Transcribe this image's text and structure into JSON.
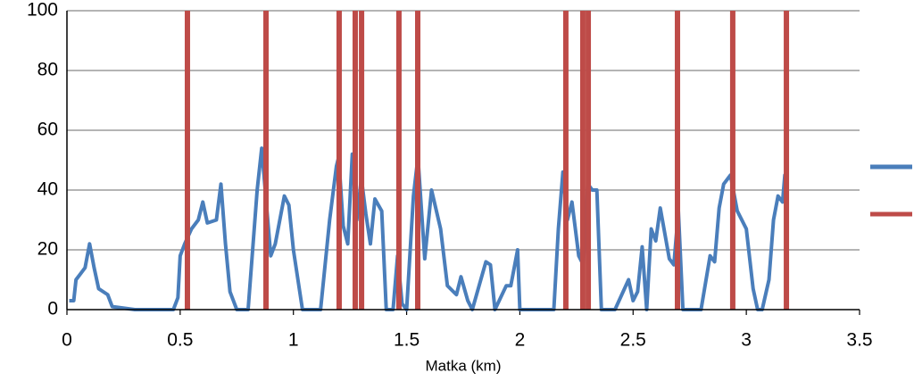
{
  "chart_data": {
    "type": "line",
    "x_label": "Matka (km)",
    "xlim": [
      0,
      3.5
    ],
    "xticks": [
      0,
      0.5,
      1,
      1.5,
      2,
      2.5,
      3,
      3.5
    ],
    "ylim": [
      0,
      100
    ],
    "yticks": [
      0,
      20,
      40,
      60,
      80,
      100
    ],
    "grid": true,
    "series": [
      {
        "color": "#4a7ebb",
        "x": [
          0.01,
          0.03,
          0.04,
          0.06,
          0.08,
          0.1,
          0.12,
          0.14,
          0.18,
          0.2,
          0.3,
          0.4,
          0.47,
          0.49,
          0.5,
          0.52,
          0.55,
          0.58,
          0.6,
          0.62,
          0.66,
          0.68,
          0.7,
          0.72,
          0.75,
          0.8,
          0.84,
          0.86,
          0.9,
          0.92,
          0.96,
          0.98,
          1.0,
          1.04,
          1.12,
          1.16,
          1.19,
          1.2,
          1.22,
          1.24,
          1.26,
          1.28,
          1.3,
          1.32,
          1.34,
          1.36,
          1.39,
          1.41,
          1.44,
          1.46,
          1.48,
          1.5,
          1.53,
          1.55,
          1.58,
          1.61,
          1.65,
          1.68,
          1.72,
          1.74,
          1.77,
          1.79,
          1.82,
          1.85,
          1.87,
          1.89,
          1.94,
          1.96,
          1.99,
          2.0,
          2.15,
          2.17,
          2.19,
          2.21,
          2.23,
          2.26,
          2.28,
          2.3,
          2.32,
          2.34,
          2.36,
          2.42,
          2.48,
          2.5,
          2.52,
          2.54,
          2.56,
          2.58,
          2.6,
          2.62,
          2.66,
          2.68,
          2.7,
          2.72,
          2.8,
          2.84,
          2.86,
          2.88,
          2.9,
          2.93,
          2.96,
          3.0,
          3.03,
          3.05,
          3.07,
          3.1,
          3.12,
          3.14,
          3.16,
          3.17,
          3.18
        ],
        "values": [
          3,
          3,
          10,
          12,
          14,
          22,
          14,
          7,
          5,
          1,
          0,
          0,
          0,
          4,
          18,
          22,
          27,
          30,
          36,
          29,
          30,
          42,
          22,
          6,
          0,
          0,
          40,
          54,
          18,
          22,
          38,
          35,
          20,
          0,
          0,
          30,
          48,
          51,
          28,
          22,
          52,
          30,
          44,
          32,
          22,
          37,
          33,
          0,
          0,
          18,
          2,
          0,
          38,
          51,
          17,
          40,
          27,
          8,
          5,
          11,
          3,
          0,
          8,
          16,
          15,
          0,
          8,
          8,
          20,
          0,
          0,
          27,
          46,
          30,
          36,
          18,
          15,
          42,
          40,
          40,
          0,
          0,
          10,
          3,
          6,
          21,
          0,
          27,
          23,
          34,
          17,
          15,
          33,
          0,
          0,
          18,
          16,
          34,
          42,
          45,
          33,
          27,
          7,
          0,
          0,
          10,
          30,
          38,
          36,
          45,
          21
        ]
      },
      {
        "color": "#be4b48",
        "type": "bar",
        "x": [
          0.532,
          0.879,
          1.202,
          1.273,
          1.301,
          1.466,
          1.549,
          2.203,
          2.278,
          2.302,
          2.696,
          2.94,
          3.177
        ],
        "values": [
          100,
          100,
          100,
          100,
          100,
          100,
          100,
          100,
          100,
          100,
          100,
          100,
          100
        ]
      }
    ]
  }
}
